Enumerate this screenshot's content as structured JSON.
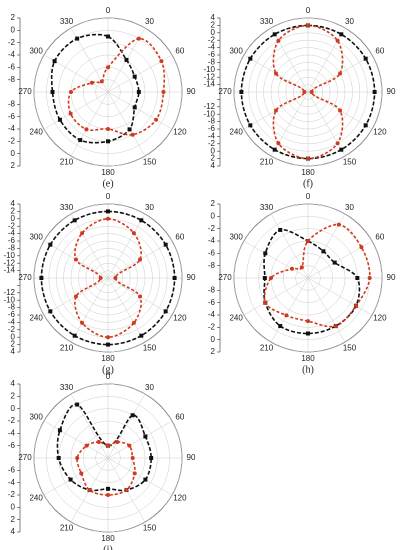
{
  "chart_data": [
    {
      "type": "polar",
      "title": "(e)",
      "theta": [
        0,
        30,
        60,
        90,
        120,
        150,
        180,
        210,
        240,
        270,
        300,
        330
      ],
      "thetaticks": [
        0,
        30,
        60,
        90,
        120,
        150,
        180,
        210,
        240,
        270,
        300,
        330
      ],
      "rlim": [
        -10,
        2
      ],
      "rticks": [
        -8,
        -6,
        -4,
        -2,
        0,
        2
      ],
      "grid": true,
      "series": [
        {
          "color": "#111111",
          "values": [
            -1,
            -4,
            -5,
            -5,
            -5,
            -3,
            -2,
            -1,
            -1,
            -1,
            0,
            0
          ]
        },
        {
          "color": "#d03a1e",
          "values": [
            -6,
            0,
            0,
            -1,
            -1,
            -2,
            -4,
            -3,
            -3,
            -4,
            -7,
            -8
          ]
        }
      ]
    },
    {
      "type": "polar",
      "title": "(f)",
      "theta": [
        0,
        30,
        60,
        90,
        120,
        150,
        180,
        210,
        240,
        270,
        300,
        330
      ],
      "thetaticks": [
        0,
        30,
        60,
        90,
        120,
        150,
        180,
        210,
        240,
        270,
        300,
        330
      ],
      "rlim": [
        -16,
        4
      ],
      "rticks": [
        -14,
        -12,
        -10,
        -8,
        -6,
        -4,
        -2,
        0,
        2,
        4
      ],
      "grid": true,
      "series": [
        {
          "color": "#111111",
          "values": [
            2,
            2,
            2,
            2,
            2,
            2,
            2,
            2,
            2,
            2,
            2,
            2
          ]
        },
        {
          "color": "#d03a1e",
          "values": [
            2,
            0,
            -6,
            -15,
            -6,
            0,
            2,
            0,
            -6,
            -15,
            -6,
            0
          ]
        }
      ]
    },
    {
      "type": "polar",
      "title": "(g)",
      "theta": [
        0,
        30,
        60,
        90,
        120,
        150,
        180,
        210,
        240,
        270,
        300,
        330
      ],
      "thetaticks": [
        0,
        30,
        60,
        90,
        120,
        150,
        180,
        210,
        240,
        270,
        300,
        330
      ],
      "rlim": [
        -16,
        4
      ],
      "rticks": [
        -14,
        -12,
        -10,
        -8,
        -6,
        -4,
        -2,
        0,
        2,
        4
      ],
      "grid": true,
      "series": [
        {
          "color": "#111111",
          "values": [
            2,
            2,
            2,
            2,
            2,
            2,
            2,
            2,
            2,
            2,
            2,
            2
          ]
        },
        {
          "color": "#d03a1e",
          "values": [
            0,
            -2,
            -6,
            -14,
            -6,
            -2,
            0,
            -2,
            -6,
            -14,
            -6,
            -2
          ]
        }
      ]
    },
    {
      "type": "polar",
      "title": "(h)",
      "theta": [
        0,
        30,
        60,
        90,
        120,
        150,
        180,
        210,
        240,
        270,
        300,
        330
      ],
      "thetaticks": [
        0,
        30,
        60,
        90,
        120,
        150,
        180,
        210,
        240,
        270,
        300,
        330
      ],
      "rlim": [
        -10,
        2
      ],
      "rticks": [
        -8,
        -6,
        -4,
        -2,
        0,
        2
      ],
      "grid": true,
      "series": [
        {
          "color": "#111111",
          "values": [
            -4,
            -5,
            -5,
            -2,
            -1,
            -1,
            -1,
            -1,
            -2,
            -3,
            -2,
            -1
          ]
        },
        {
          "color": "#d03a1e",
          "values": [
            -4,
            0,
            0,
            0,
            -1,
            -1,
            -3,
            -3,
            -2,
            -4,
            -7,
            -8
          ]
        }
      ]
    },
    {
      "type": "polar",
      "title": "(i)",
      "theta": [
        0,
        30,
        60,
        90,
        120,
        150,
        180,
        210,
        240,
        270,
        300,
        330
      ],
      "thetaticks": [
        0,
        30,
        60,
        90,
        120,
        150,
        180,
        210,
        240,
        270,
        300,
        330
      ],
      "rlim": [
        -8,
        4
      ],
      "rticks": [
        -6,
        -4,
        -2,
        0,
        2,
        4
      ],
      "grid": true,
      "series": [
        {
          "color": "#111111",
          "values": [
            -6,
            0,
            -1,
            -1,
            -1,
            -2,
            -3,
            -2,
            -1,
            0,
            1,
            2
          ]
        },
        {
          "color": "#d03a1e",
          "values": [
            -6,
            -5,
            -4,
            -4,
            -3,
            -2,
            -2,
            -2,
            -3,
            -3,
            -4,
            -5
          ]
        }
      ]
    }
  ]
}
